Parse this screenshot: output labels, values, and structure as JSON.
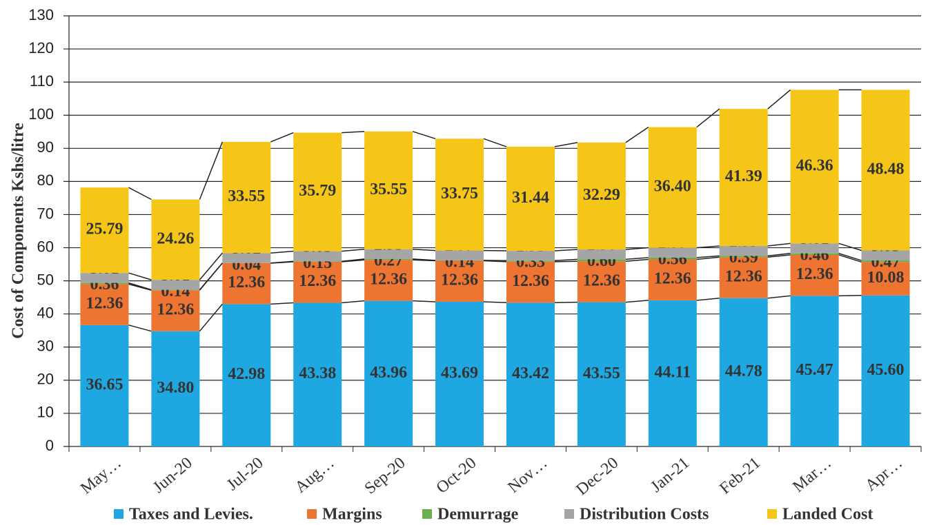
{
  "chart_data": {
    "type": "stacked_bar",
    "y_label": "Cost of Components Kshs/litre",
    "categories": [
      "May…",
      "Jun-20",
      "Jul-20",
      "Aug…",
      "Sep-20",
      "Oct-20",
      "Nov…",
      "Dec-20",
      "Jan-21",
      "Feb-21",
      "Mar…",
      "Apr…"
    ],
    "series": [
      {
        "name": "Taxes and Levies.",
        "color": "#1ea7e1",
        "values": [
          36.65,
          34.8,
          42.98,
          43.38,
          43.96,
          43.69,
          43.42,
          43.55,
          44.11,
          44.78,
          45.47,
          45.6
        ],
        "value_labels": [
          "36.65",
          "34.80",
          "42.98",
          "43.38",
          "43.96",
          "43.69",
          "43.42",
          "43.55",
          "44.11",
          "44.78",
          "45.47",
          "45.60"
        ]
      },
      {
        "name": "Margins",
        "color": "#ee7432",
        "values": [
          12.36,
          12.36,
          12.36,
          12.36,
          12.36,
          12.36,
          12.36,
          12.36,
          12.36,
          12.36,
          12.36,
          10.08
        ],
        "value_labels": [
          "12.36",
          "12.36",
          "12.36",
          "12.36",
          "12.36",
          "12.36",
          "12.36",
          "12.36",
          "12.36",
          "12.36",
          "12.36",
          "10.08"
        ]
      },
      {
        "name": "Demurrage",
        "color": "#6ab04c",
        "values": [
          0.36,
          0.14,
          0.04,
          0.15,
          0.27,
          0.14,
          0.33,
          0.6,
          0.56,
          0.39,
          0.46,
          0.47
        ],
        "value_labels": [
          "0.36",
          "0.14",
          "0.04",
          "0.15",
          "0.27",
          "0.14",
          "0.33",
          "0.60",
          "0.56",
          "0.39",
          "0.46",
          "0.47"
        ]
      },
      {
        "name": "Distribution Costs",
        "color": "#a5a5a5",
        "values": [
          3.01,
          3.01,
          3.02,
          3.05,
          2.95,
          2.97,
          2.95,
          2.96,
          2.97,
          2.99,
          3.01,
          3.03
        ],
        "value_labels": [
          "3.01",
          "3.01",
          "3.02",
          "3.05",
          "2.95",
          "2.97",
          "2.95",
          "2.96",
          "2.97",
          "2.99",
          "3.01",
          "3.03"
        ]
      },
      {
        "name": "Landed Cost",
        "color": "#f5c518",
        "values": [
          25.79,
          24.26,
          33.55,
          35.79,
          35.55,
          33.75,
          31.44,
          32.29,
          36.4,
          41.39,
          46.36,
          48.48
        ],
        "value_labels": [
          "25.79",
          "24.26",
          "33.55",
          "35.79",
          "35.55",
          "33.75",
          "31.44",
          "32.29",
          "36.40",
          "41.39",
          "46.36",
          "48.48"
        ]
      }
    ],
    "ylim": [
      0,
      130
    ],
    "yticks": [
      0,
      10,
      20,
      30,
      40,
      50,
      60,
      70,
      80,
      90,
      100,
      110,
      120,
      130
    ],
    "grid": true,
    "legend": "bottom"
  }
}
